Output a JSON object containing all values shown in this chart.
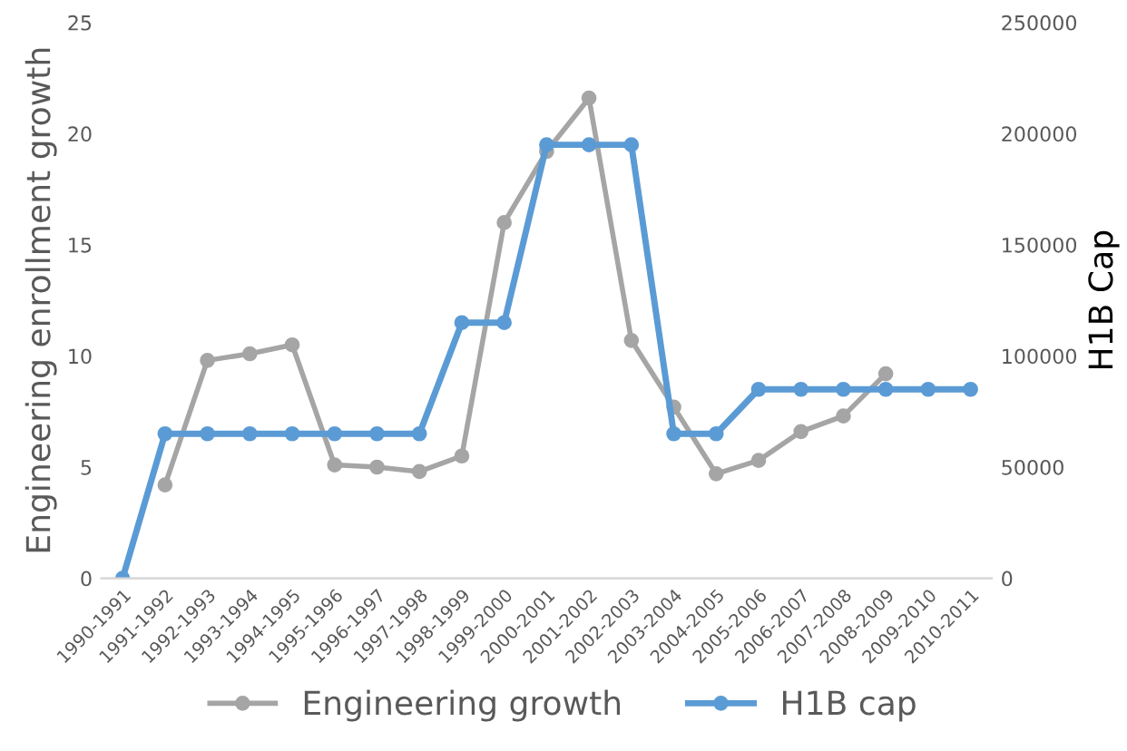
{
  "chart_data": {
    "type": "line",
    "categories": [
      "1990-1991",
      "1991-1992",
      "1992-1993",
      "1993-1994",
      "1994-1995",
      "1995-1996",
      "1996-1997",
      "1997-1998",
      "1998-1999",
      "1999-2000",
      "2000-2001",
      "2001-2002",
      "2002-2003",
      "2003-2004",
      "2004-2005",
      "2005-2006",
      "2006-2007",
      "2007-2008",
      "2008-2009",
      "2009-2010",
      "2010-2011"
    ],
    "series": [
      {
        "name": "Engineering growth",
        "color": "#a5a5a5",
        "values": [
          null,
          4.2,
          9.8,
          10.1,
          10.5,
          5.1,
          5.0,
          4.8,
          5.5,
          16.0,
          19.2,
          21.6,
          10.7,
          7.7,
          4.7,
          5.3,
          6.6,
          7.3,
          9.2,
          null,
          null
        ]
      },
      {
        "name": "H1B cap",
        "color": "#5b9bd5",
        "axis": "y2",
        "values": [
          0,
          65000,
          65000,
          65000,
          65000,
          65000,
          65000,
          65000,
          115000,
          115000,
          195000,
          195000,
          195000,
          65000,
          65000,
          85000,
          85000,
          85000,
          85000,
          85000,
          85000
        ]
      }
    ],
    "ylabel": "Engineering enrollment growth",
    "y2label": "H1B Cap",
    "ylim": [
      0,
      25
    ],
    "yticks": [
      0,
      5,
      10,
      15,
      20,
      25
    ],
    "y2lim": [
      0,
      250000
    ],
    "y2ticks": [
      0,
      50000,
      100000,
      150000,
      200000,
      250000
    ],
    "legend": "bottom",
    "marker": "circle",
    "grid": false
  }
}
